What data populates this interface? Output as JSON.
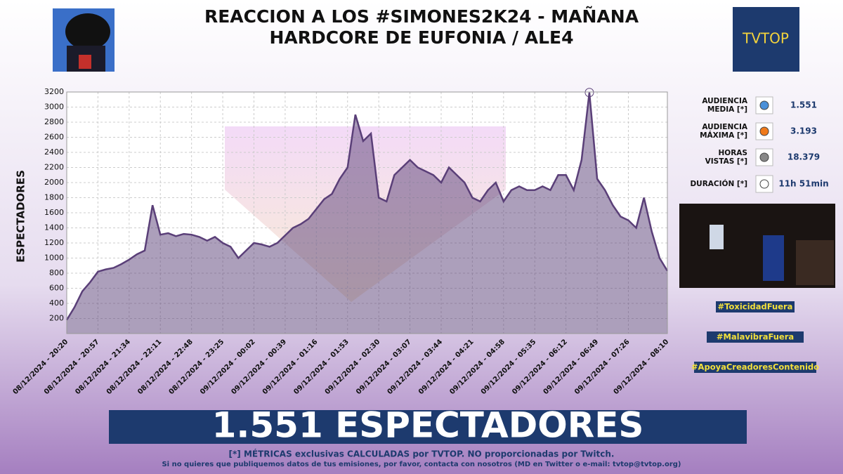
{
  "header": {
    "title_lines": [
      "REACCION A LOS #SIMONES2K24 - MAÑANA",
      "HARDCORE DE EUFONIA / ALE4"
    ],
    "logo": "TVTOP"
  },
  "chart_data": {
    "type": "area",
    "y_label": "ESPECTADORES",
    "categories": [
      "08/12/2024 - 20:20",
      null,
      null,
      null,
      "08/12/2024 - 20:57",
      null,
      null,
      null,
      "08/12/2024 - 21:34",
      null,
      null,
      null,
      "08/12/2024 - 22:11",
      null,
      null,
      null,
      "08/12/2024 - 22:48",
      null,
      null,
      null,
      "08/12/2024 - 23:25",
      null,
      null,
      null,
      "09/12/2024 - 00:02",
      null,
      null,
      null,
      "09/12/2024 - 00:39",
      null,
      null,
      null,
      "09/12/2024 - 01:16",
      null,
      null,
      null,
      "09/12/2024 - 01:53",
      null,
      null,
      null,
      "09/12/2024 - 02:30",
      null,
      null,
      null,
      "09/12/2024 - 03:07",
      null,
      null,
      null,
      "09/12/2024 - 03:44",
      null,
      null,
      null,
      "09/12/2024 - 04:21",
      null,
      null,
      null,
      "09/12/2024 - 04:58",
      null,
      null,
      null,
      "09/12/2024 - 05:35",
      null,
      null,
      null,
      "09/12/2024 - 06:12",
      null,
      null,
      null,
      "09/12/2024 - 06:49",
      null,
      null,
      null,
      "09/12/2024 - 07:26",
      null,
      null,
      null,
      null,
      "09/12/2024 - 08:10"
    ],
    "values": [
      180,
      350,
      560,
      680,
      820,
      850,
      870,
      920,
      980,
      1050,
      1100,
      1700,
      1310,
      1330,
      1290,
      1320,
      1310,
      1280,
      1230,
      1280,
      1200,
      1150,
      1000,
      1100,
      1200,
      1180,
      1150,
      1200,
      1300,
      1400,
      1450,
      1520,
      1650,
      1780,
      1850,
      2050,
      2200,
      2900,
      2550,
      2650,
      1800,
      1750,
      2100,
      2200,
      2300,
      2200,
      2150,
      2100,
      2000,
      2200,
      2100,
      2000,
      1800,
      1750,
      1900,
      2000,
      1750,
      1900,
      1950,
      1900,
      1900,
      1950,
      1900,
      2100,
      2100,
      1900,
      2300,
      3193,
      2050,
      1900,
      1700,
      1550,
      1500,
      1400,
      1800,
      1350,
      1000,
      830
    ],
    "color": "#5a3f78",
    "ylim": [
      0,
      3200
    ],
    "yticks": [
      200,
      400,
      600,
      800,
      1000,
      1200,
      1400,
      1600,
      1800,
      2000,
      2200,
      2400,
      2600,
      2800,
      3000,
      3200
    ],
    "grid": true,
    "max_marker": true
  },
  "stats": [
    {
      "label": [
        "AUDIENCIA",
        "MEDIA [*]"
      ],
      "value": "1.551"
    },
    {
      "label": [
        "AUDIENCIA",
        "MÁXIMA [*]"
      ],
      "value": "3.193"
    },
    {
      "label": [
        "HORAS",
        "VISTAS [*]"
      ],
      "value": "18.379"
    },
    {
      "label": [
        "DURACIÓN [*]"
      ],
      "value": "11h 51min"
    }
  ],
  "hashtags": [
    "#ToxicidadFuera",
    "#MalavibraFuera",
    "#ApoyaCreadoresContenido"
  ],
  "banner": "1.551 ESPECTADORES",
  "footer": [
    "[*] MÉTRICAS exclusivas CALCULADAS por TVTOP. NO proporcionadas por Twitch.",
    "Si no quieres que publiquemos datos de tus emisiones, por favor, contacta con nosotros (MD en Twitter o e-mail: tvtop@tvtop.org)"
  ]
}
